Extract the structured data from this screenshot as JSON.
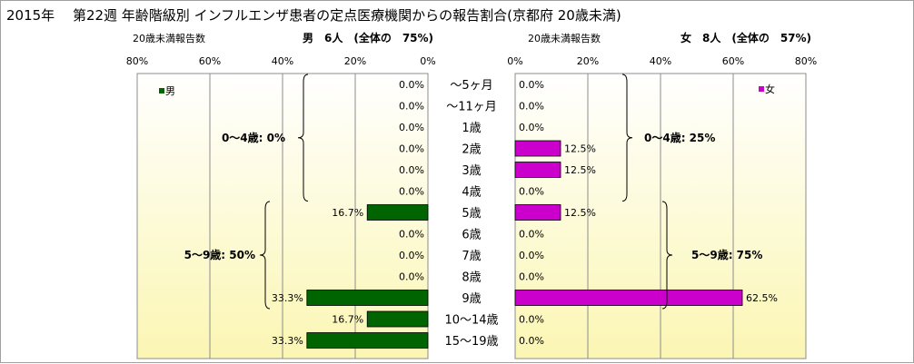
{
  "title": "2015年　 第22週 年齢階級別 インフルエンザ患者の定点医療機関からの報告割合(京都府 20歳未満)",
  "colors": {
    "male": "#006400",
    "female": "#cc00cc",
    "background_top": "#ffffff",
    "background_bottom": "#fbf6b3"
  },
  "male_header": {
    "count_label": "20歳未満報告数",
    "summary": "男　6人　(全体の　75%)"
  },
  "female_header": {
    "count_label": "20歳未満報告数",
    "summary": "女　8人　(全体の　57%)"
  },
  "chart_data": {
    "type": "bar",
    "orientation": "horizontal",
    "layout": "population-pyramid",
    "categories": [
      "～5ヶ月",
      "～11ヶ月",
      "1歳",
      "2歳",
      "3歳",
      "4歳",
      "5歳",
      "6歳",
      "7歳",
      "8歳",
      "9歳",
      "10～14歳",
      "15～19歳"
    ],
    "xlim": [
      0,
      80
    ],
    "ticks": [
      "80%",
      "60%",
      "40%",
      "20%",
      "0%"
    ],
    "ticks_right": [
      "0%",
      "20%",
      "40%",
      "60%",
      "80%"
    ],
    "series": [
      {
        "name": "男",
        "color": "#006400",
        "values": [
          0.0,
          0.0,
          0.0,
          0.0,
          0.0,
          0.0,
          16.7,
          0.0,
          0.0,
          0.0,
          33.3,
          16.7,
          33.3
        ],
        "labels": [
          "0.0%",
          "0.0%",
          "0.0%",
          "0.0%",
          "0.0%",
          "0.0%",
          "16.7%",
          "0.0%",
          "0.0%",
          "0.0%",
          "33.3%",
          "16.7%",
          "33.3%"
        ],
        "groups": [
          {
            "label": "0～4歳: 0%",
            "from": 0,
            "to": 5
          },
          {
            "label": "5～9歳: 50%",
            "from": 6,
            "to": 10
          }
        ]
      },
      {
        "name": "女",
        "color": "#cc00cc",
        "values": [
          0.0,
          0.0,
          0.0,
          12.5,
          12.5,
          0.0,
          12.5,
          0.0,
          0.0,
          0.0,
          62.5,
          0.0,
          0.0
        ],
        "labels": [
          "0.0%",
          "0.0%",
          "0.0%",
          "12.5%",
          "12.5%",
          "0.0%",
          "12.5%",
          "0.0%",
          "0.0%",
          "0.0%",
          "62.5%",
          "0.0%",
          "0.0%"
        ],
        "groups": [
          {
            "label": "0～4歳: 25%",
            "from": 0,
            "to": 5
          },
          {
            "label": "5～9歳: 75%",
            "from": 6,
            "to": 10
          }
        ]
      }
    ],
    "legend": {
      "male": "男",
      "female": "女"
    },
    "grid": true
  }
}
